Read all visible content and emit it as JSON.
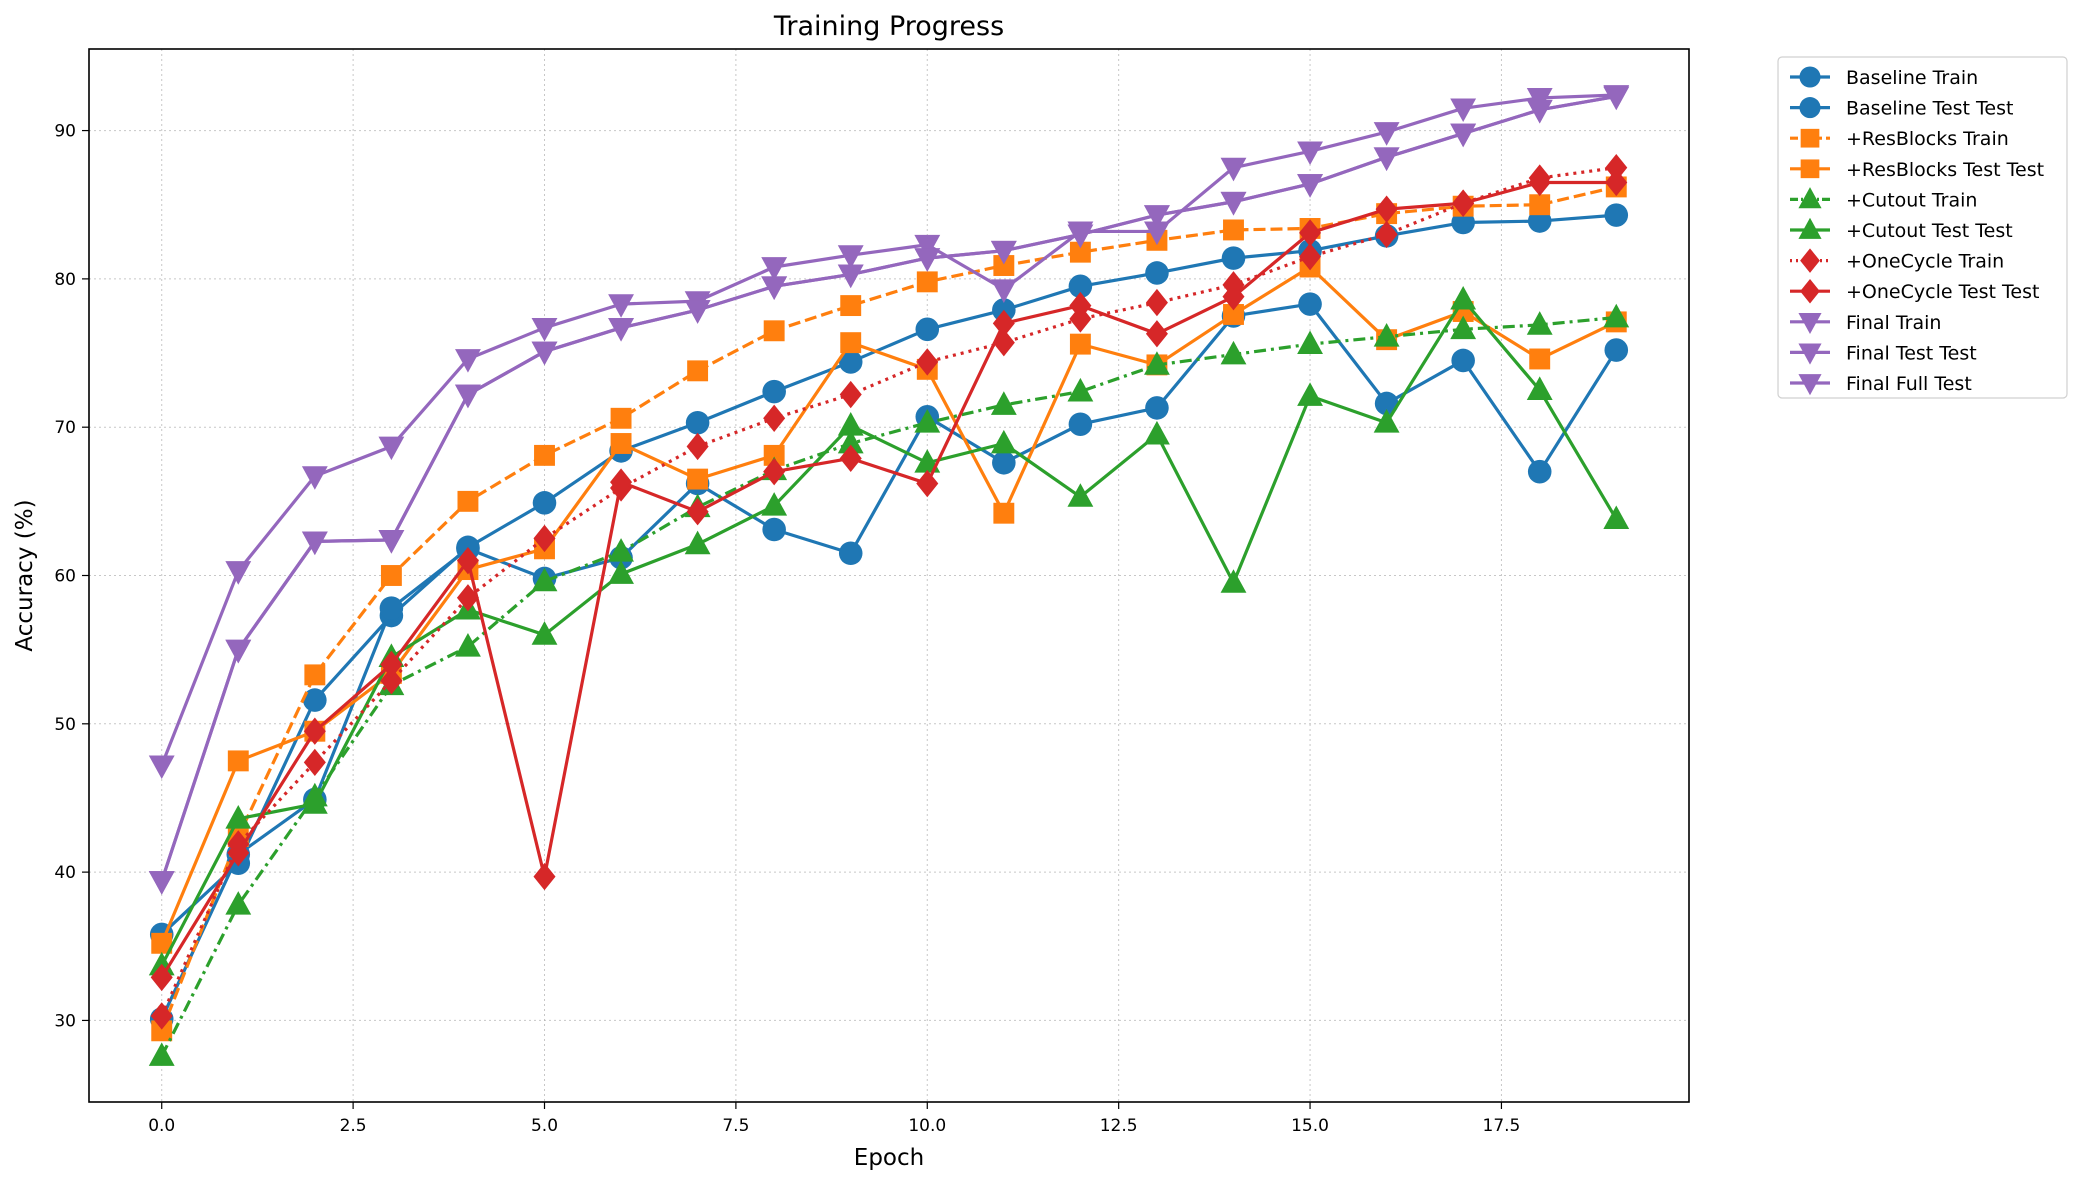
{
  "chart_data": {
    "type": "line",
    "title": "Training Progress",
    "xlabel": "Epoch",
    "ylabel": "Accuracy (%)",
    "xlim": [
      -0.95,
      19.95
    ],
    "ylim": [
      24.5,
      95.5
    ],
    "xticks": [
      "0.0",
      "2.5",
      "5.0",
      "7.5",
      "10.0",
      "12.5",
      "15.0",
      "17.5"
    ],
    "xtick_values": [
      0,
      2.5,
      5,
      7.5,
      10,
      12.5,
      15,
      17.5
    ],
    "yticks": [
      "30",
      "40",
      "50",
      "60",
      "70",
      "80",
      "90"
    ],
    "ytick_values": [
      30,
      40,
      50,
      60,
      70,
      80,
      90
    ],
    "grid": true,
    "legend_position": "outside-right-top",
    "x": [
      0,
      1,
      2,
      3,
      4,
      5,
      6,
      7,
      8,
      9,
      10,
      11,
      12,
      13,
      14,
      15,
      16,
      17,
      18,
      19
    ],
    "series": [
      {
        "name": "Baseline Train",
        "color": "#1f77b4",
        "dash": "solid",
        "marker": "circle",
        "values": [
          35.8,
          40.6,
          51.6,
          57.3,
          61.9,
          64.9,
          68.4,
          70.3,
          72.4,
          74.4,
          76.6,
          77.9,
          79.5,
          80.4,
          81.4,
          81.9,
          82.9,
          83.8,
          83.9,
          84.3
        ]
      },
      {
        "name": "Baseline Test Test",
        "color": "#1f77b4",
        "dash": "solid",
        "marker": "circle",
        "values": [
          30.1,
          41.2,
          44.9,
          57.8,
          61.8,
          59.8,
          61.2,
          66.2,
          63.1,
          61.5,
          70.7,
          67.6,
          70.2,
          71.3,
          77.5,
          78.3,
          71.6,
          74.5,
          67.0,
          75.2
        ]
      },
      {
        "name": "+ResBlocks Train",
        "color": "#ff7f0e",
        "dash": "dashed",
        "marker": "square",
        "values": [
          29.3,
          42.4,
          53.3,
          60.0,
          65.0,
          68.1,
          70.6,
          73.8,
          76.5,
          78.2,
          79.8,
          80.9,
          81.8,
          82.6,
          83.3,
          83.4,
          84.4,
          84.9,
          85.0,
          86.2
        ]
      },
      {
        "name": "+ResBlocks Test Test",
        "color": "#ff7f0e",
        "dash": "solid",
        "marker": "square",
        "values": [
          35.2,
          47.5,
          49.5,
          53.4,
          60.4,
          61.8,
          68.9,
          66.5,
          68.1,
          75.7,
          73.9,
          64.2,
          75.6,
          74.2,
          77.6,
          80.8,
          75.9,
          77.8,
          74.6,
          77.1
        ]
      },
      {
        "name": "+Cutout Train",
        "color": "#2ca02c",
        "dash": "dashdot",
        "marker": "triangle-up",
        "values": [
          27.6,
          37.8,
          45.1,
          52.6,
          55.2,
          59.6,
          61.6,
          64.6,
          67.1,
          68.9,
          70.3,
          71.5,
          72.4,
          74.2,
          74.9,
          75.6,
          76.1,
          76.6,
          76.9,
          77.4
        ]
      },
      {
        "name": "+Cutout Test Test",
        "color": "#2ca02c",
        "dash": "solid",
        "marker": "triangle-up",
        "values": [
          33.7,
          43.6,
          44.6,
          54.5,
          57.7,
          56.0,
          60.1,
          62.1,
          64.7,
          70.1,
          67.6,
          68.9,
          65.3,
          69.5,
          59.5,
          72.1,
          70.3,
          78.6,
          72.5,
          63.8
        ]
      },
      {
        "name": "+OneCycle Train",
        "color": "#d62728",
        "dash": "dotted",
        "marker": "diamond",
        "values": [
          30.3,
          41.9,
          47.4,
          52.9,
          58.5,
          62.5,
          65.9,
          68.7,
          70.6,
          72.2,
          74.4,
          75.7,
          77.3,
          78.4,
          79.6,
          81.5,
          83.0,
          85.1,
          86.8,
          87.5
        ]
      },
      {
        "name": "+OneCycle Test Test",
        "color": "#d62728",
        "dash": "solid",
        "marker": "diamond",
        "values": [
          32.9,
          41.3,
          49.5,
          54.0,
          61.0,
          39.7,
          66.3,
          64.3,
          67.0,
          67.9,
          66.2,
          77.0,
          78.2,
          76.3,
          78.8,
          83.1,
          84.7,
          85.1,
          86.5,
          86.5
        ]
      },
      {
        "name": "Final Train",
        "color": "#9467bd",
        "dash": "solid",
        "marker": "triangle-down",
        "values": [
          47.2,
          60.3,
          66.7,
          68.7,
          74.6,
          76.7,
          78.3,
          78.5,
          80.8,
          81.6,
          82.3,
          79.3,
          83.2,
          83.2,
          87.5,
          88.6,
          89.9,
          91.5,
          92.2,
          92.4
        ]
      },
      {
        "name": "Final Test Test",
        "color": "#9467bd",
        "dash": "solid",
        "marker": "triangle-down",
        "values": [
          39.4,
          55.0,
          62.3,
          62.4,
          72.2,
          75.1,
          76.7,
          77.9,
          79.5,
          80.3,
          81.4,
          81.9,
          83.0,
          84.3,
          85.2,
          86.4,
          88.2,
          89.8,
          91.4,
          92.3
        ]
      },
      {
        "name": "Final Full Test",
        "color": "#9467bd",
        "dash": "solid",
        "marker": "triangle-down",
        "values": [
          39.4,
          55.0,
          62.3,
          62.4,
          72.2,
          75.1,
          76.7,
          77.9,
          79.5,
          80.3,
          81.4,
          81.9,
          83.0,
          84.3,
          85.2,
          86.4,
          88.2,
          89.8,
          91.4,
          92.3
        ]
      }
    ]
  }
}
